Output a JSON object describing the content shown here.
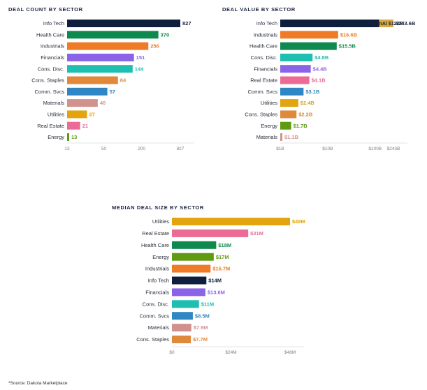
{
  "colors": {
    "Info Tech": "#0f1e3d",
    "Health Care": "#0e8a4e",
    "Industrials": "#ef7b27",
    "Financials": "#8a63e8",
    "Cons. Disc.": "#1cbfb0",
    "Cons. Staples": "#e0893a",
    "Comm. Svcs": "#2f86c5",
    "Materials": "#d1928f",
    "Utilities": "#e2a40f",
    "Real Estate": "#ec6b95",
    "Energy": "#5e9a12",
    "OpenAI": "#d8a93b"
  },
  "chart_data": [
    {
      "id": "count",
      "type": "bar",
      "orientation": "horizontal",
      "title": "DEAL COUNT BY SECTOR",
      "scale": "log",
      "xlim": [
        13,
        827
      ],
      "categories": [
        "Info Tech",
        "Health Care",
        "Industrials",
        "Financials",
        "Cons. Disc.",
        "Cons. Staples",
        "Comm. Svcs",
        "Materials",
        "Utilities",
        "Real Estate",
        "Energy"
      ],
      "values": [
        827,
        370,
        256,
        151,
        144,
        84,
        57,
        40,
        27,
        21,
        13
      ],
      "value_labels": [
        "827",
        "370",
        "256",
        "151",
        "144",
        "84",
        "57",
        "40",
        "27",
        "21",
        "13"
      ],
      "ticks": [
        13,
        50,
        200,
        827
      ],
      "tick_labels": [
        "13",
        "50",
        "200",
        "827"
      ]
    },
    {
      "id": "value",
      "type": "bar",
      "orientation": "horizontal",
      "title": "DEAL VALUE BY SECTOR",
      "scale": "log",
      "xlim": [
        1,
        243.6
      ],
      "unit": "$B",
      "categories": [
        "Info Tech",
        "Industrials",
        "Health Care",
        "Cons. Disc.",
        "Financials",
        "Real Estate",
        "Comm. Svcs",
        "Utilities",
        "Cons. Staples",
        "Energy",
        "Materials"
      ],
      "values": [
        243.6,
        16.6,
        15.5,
        4.8,
        4.4,
        4.1,
        3.1,
        2.4,
        2.2,
        1.7,
        1.1
      ],
      "value_labels": [
        "$243.6B",
        "$16.6B",
        "$15.5B",
        "$4.8B",
        "$4.4B",
        "$4.1B",
        "$3.1B",
        "$2.4B",
        "$2.2B",
        "$1.7B",
        "$1.1B"
      ],
      "segment": {
        "category": "Info Tech",
        "from": 121.6,
        "to": 243.6,
        "label": "OpenAI $122B"
      },
      "ticks": [
        1,
        10,
        100,
        243
      ],
      "tick_labels": [
        "$1B",
        "$10B",
        "$100B",
        "$243B"
      ]
    },
    {
      "id": "median",
      "type": "bar",
      "orientation": "horizontal",
      "title": "MEDIAN DEAL SIZE BY SECTOR",
      "scale": "linear",
      "xlim": [
        0,
        48
      ],
      "unit": "$M",
      "categories": [
        "Utilities",
        "Real Estate",
        "Health Care",
        "Energy",
        "Industrials",
        "Info Tech",
        "Financials",
        "Cons. Disc.",
        "Comm. Svcs",
        "Materials",
        "Cons. Staples"
      ],
      "values": [
        48,
        31,
        18,
        17,
        15.7,
        14,
        13.6,
        11,
        8.5,
        7.9,
        7.7
      ],
      "value_labels": [
        "$48M",
        "$31M",
        "$18M",
        "$17M",
        "$15.7M",
        "$14M",
        "$13.6M",
        "$11M",
        "$8.5M",
        "$7.9M",
        "$7.7M"
      ],
      "ticks": [
        0,
        24,
        48
      ],
      "tick_labels": [
        "$0",
        "$24M",
        "$48M"
      ]
    }
  ],
  "source": "*Source: Dakota Marketplace"
}
